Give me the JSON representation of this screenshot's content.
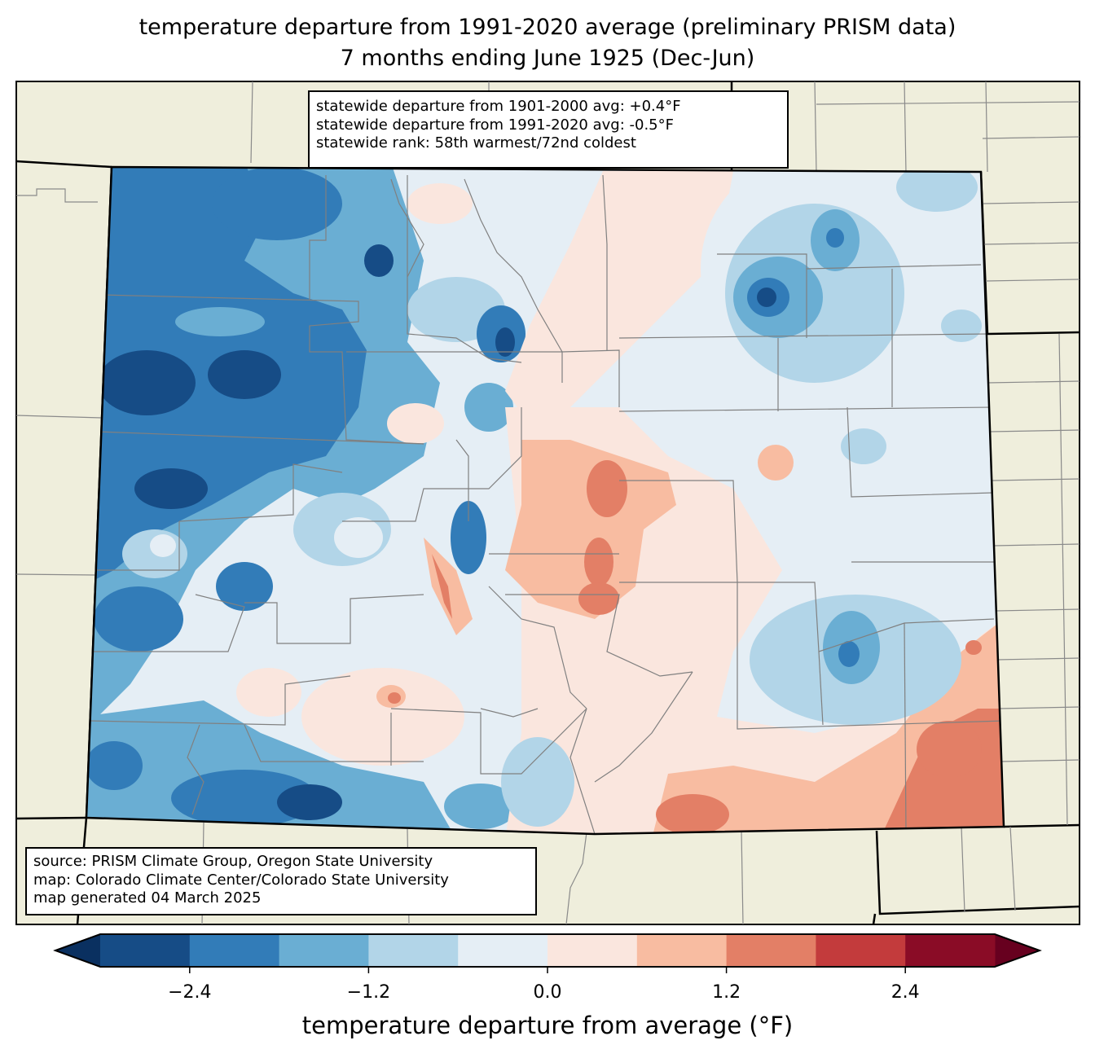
{
  "title": {
    "line1": "temperature departure from 1991-2020 average (preliminary PRISM data)",
    "line2": "7 months ending June 1925 (Dec-Jun)"
  },
  "stats_box": {
    "line1": "statewide departure from 1901-2000 avg: +0.4°F",
    "line2": "statewide departure from 1991-2020 avg: -0.5°F",
    "line3": "statewide rank: 58th warmest/72nd coldest"
  },
  "source_box": {
    "line1": "source: PRISM Climate Group, Oregon State University",
    "line2": "map: Colorado Climate Center/Colorado State University",
    "line3": "map generated 04 March 2025"
  },
  "colorbar": {
    "label": "temperature departure from average (°F)",
    "ticks": [
      "−2.4",
      "−1.2",
      "0.0",
      "1.2",
      "2.4"
    ],
    "tick_values": [
      -2.4,
      -1.2,
      0.0,
      1.2,
      2.4
    ],
    "bounds": [
      -3.0,
      -2.4,
      -1.8,
      -1.2,
      -0.6,
      0.0,
      0.6,
      1.2,
      1.8,
      2.4,
      3.0
    ],
    "colors": [
      "#164c86",
      "#327cb8",
      "#6aaed3",
      "#b2d5e8",
      "#e5eef5",
      "#fae6de",
      "#f8bca1",
      "#e37f66",
      "#c33b3c",
      "#8a0c26"
    ],
    "under_color": "#0a3060",
    "over_color": "#67001f"
  },
  "colors": {
    "land": "#efeedc",
    "state_border": "#000000",
    "county_border": "#808080"
  }
}
